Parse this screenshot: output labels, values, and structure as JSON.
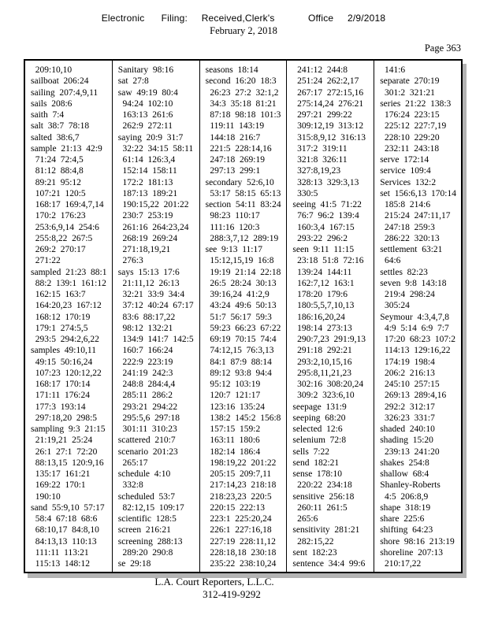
{
  "header": {
    "filing_line": "Electronic      Filing:     Received,Clerk's            Office     2/9/2018",
    "date_line": "February 2, 2018",
    "page_label": "Page 363"
  },
  "index_table": {
    "columns": [
      [
        "  209:10,10",
        "sailboat  206:24",
        "sailing  207:4,9,11",
        "sails  208:6",
        "saith  7:4",
        "salt  38:7  78:18",
        "salted  38:6,7",
        "sample  21:13  42:9",
        "  71:24  72:4,5",
        "  81:12  88:4,8",
        "  89:21  95:12",
        "  107:21  120:5",
        "  168:17  169:4,7,14",
        "  170:2  176:23",
        "  253:6,9,14  254:6",
        "  255:8,22  267:5",
        "  269:2  270:17",
        "  271:22",
        "sampled  21:23  88:1",
        "  88:2  139:1  161:12",
        "  162:15  163:7",
        "  164:20,23  167:12",
        "  168:12  170:19",
        "  179:1  274:5,5",
        "  293:5  294:2,6,22",
        "samples  49:10,11",
        "  49:15  50:16,24",
        "  107:23  120:12,22",
        "  168:17  170:14",
        "  171:11  176:24",
        "  177:3  193:14",
        "  297:18,20  298:5",
        "sampling  9:3  21:15",
        "  21:19,21  25:24",
        "  26:1  27:1  72:20",
        "  88:13,15  120:9,16",
        "  135:17  161:21",
        "  169:22  170:1",
        "  190:10",
        "sand  55:9,10  57:17",
        "  58:4  67:18  68:6",
        "  68:10,17  84:8,10",
        "  84:13,13  110:13",
        "  111:11  113:21",
        "  115:13  148:12"
      ],
      [
        "Sanitary  98:16",
        "sat  27:8",
        "saw  49:19  80:4",
        "  94:24  102:10",
        "  163:13  261:6",
        "  262:9  272:11",
        "saying  20:9  31:7",
        "  32:22  34:15  58:11",
        "  61:14  126:3,4",
        "  152:14  158:11",
        "  172:2  181:13",
        "  187:13  189:21",
        "  190:15,22  201:22",
        "  230:7  253:19",
        "  261:16  264:23,24",
        "  268:19  269:24",
        "  271:18,19,21",
        "  276:3",
        "says  15:13  17:6",
        "  21:11,12  26:13",
        "  32:21  33:9  34:4",
        "  37:12  40:24  67:17",
        "  83:6  88:17,22",
        "  98:12  132:21",
        "  134:9  141:7  142:5",
        "  160:7  166:24",
        "  222:9  223:19",
        "  241:19  242:3",
        "  248:8  284:4,4",
        "  285:11  286:2",
        "  293:21  294:22",
        "  295:5,6  297:18",
        "  301:11  310:23",
        "scattered  210:7",
        "scenario  201:23",
        "  265:17",
        "schedule  4:10",
        "  332:8",
        "scheduled  53:7",
        "  82:12,15  109:17",
        "scientific  128:5",
        "screen  216:21",
        "screening  288:13",
        "  289:20  290:8",
        "se  29:18"
      ],
      [
        "seasons  18:14",
        "second  16:20  18:3",
        "  26:23  27:2  32:1,2",
        "  34:3  35:18  81:21",
        "  87:18  98:18  101:3",
        "  119:11  143:19",
        "  144:18  216:7",
        "  221:5  228:14,16",
        "  247:18  269:19",
        "  297:13  299:1",
        "secondary  52:6,10",
        "  53:17  58:15  65:13",
        "section  54:11  83:24",
        "  98:23  110:17",
        "  111:16  120:3",
        "  288:3,7,12  289:19",
        "see  9:13  11:17",
        "  15:12,15,19  16:8",
        "  19:19  21:14  22:18",
        "  26:5  28:24  30:13",
        "  39:16,24  41:2,9",
        "  43:24  49:6  50:13",
        "  51:7  56:17  59:3",
        "  59:23  66:23  67:22",
        "  69:19  70:15  74:4",
        "  74:12,15  76:3,13",
        "  84:1  87:9  88:14",
        "  89:12  93:8  94:4",
        "  95:12  103:19",
        "  120:7  121:17",
        "  123:16  135:24",
        "  138:2  145:2  156:8",
        "  157:15  159:2",
        "  163:11  180:6",
        "  182:14  186:4",
        "  198:19,22  201:22",
        "  205:15  209:7,11",
        "  217:14,23  218:18",
        "  218:23,23  220:5",
        "  220:15  222:13",
        "  223:1  225:20,24",
        "  226:1  227:16,18",
        "  227:19  228:11,12",
        "  228:18,18  230:18",
        "  235:22  238:10,24"
      ],
      [
        "  241:12  244:8",
        "  251:24  262:2,17",
        "  267:17  272:15,16",
        "  275:14,24  276:21",
        "  297:21  299:22",
        "  309:12,19  313:12",
        "  315:8,9,12  316:13",
        "  317:2  319:11",
        "  321:8  326:11",
        "  327:8,19,23",
        "  328:13  329:3,13",
        "  330:5",
        "seeing  41:5  71:22",
        "  76:7  96:2  139:4",
        "  160:3,4  167:15",
        "  293:22  296:2",
        "seen  9:11  11:15",
        "  23:18  51:8  72:16",
        "  139:24  144:11",
        "  162:7,12  163:1",
        "  178:20  179:6",
        "  180:5,5,7,10,13",
        "  186:16,20,24",
        "  198:14  273:13",
        "  290:7,23  291:9,13",
        "  291:18  292:21",
        "  293:2,10,15,16",
        "  295:8,11,21,23",
        "  302:16  308:20,24",
        "  309:2  323:6,10",
        "seepage  131:9",
        "seeping  68:20",
        "selected  12:6",
        "selenium  72:8",
        "sells  7:22",
        "send  182:21",
        "sense  178:10",
        "  220:22  234:18",
        "sensitive  256:18",
        "  260:11  261:5",
        "  265:6",
        "sensitivity  281:21",
        "  282:15,22",
        "sent  182:23",
        "sentence  34:4  99:6"
      ],
      [
        "  141:6",
        "separate  270:19",
        "  301:2  321:21",
        "series  21:22  138:3",
        "  176:24  223:15",
        "  225:12  227:7,19",
        "  228:10  229:20",
        "  232:11  243:18",
        "serve  172:14",
        "service  109:4",
        "Services  132:2",
        "set  156:6,13  170:14",
        "  185:8  214:6",
        "  215:24  247:11,17",
        "  247:18  259:3",
        "  286:22  320:13",
        "settlement  63:21",
        "  64:6",
        "settles  82:23",
        "seven  9:8  143:18",
        "  219:4  298:24",
        "  305:24",
        "Seymour  4:3,4,7,8",
        "  4:9  5:14  6:9  7:7",
        "  17:20  68:23  107:2",
        "  114:13  129:16,22",
        "  174:19  198:4",
        "  206:2  216:13",
        "  245:10  257:15",
        "  269:13  289:4,16",
        "  292:2  312:17",
        "  326:23  331:7",
        "shaded  240:10",
        "shading  15:20",
        "  239:13  241:20",
        "shakes  254:8",
        "shallow  68:4",
        "Shanley-Roberts",
        "  4:5  206:8,9",
        "shape  318:19",
        "share  225:6",
        "shifting  64:23",
        "shore  98:16  213:19",
        "shoreline  207:13",
        "  210:17,22"
      ]
    ]
  },
  "footer": {
    "company": "L.A. Court Reporters, L.L.C.",
    "phone": "312-419-9292"
  }
}
